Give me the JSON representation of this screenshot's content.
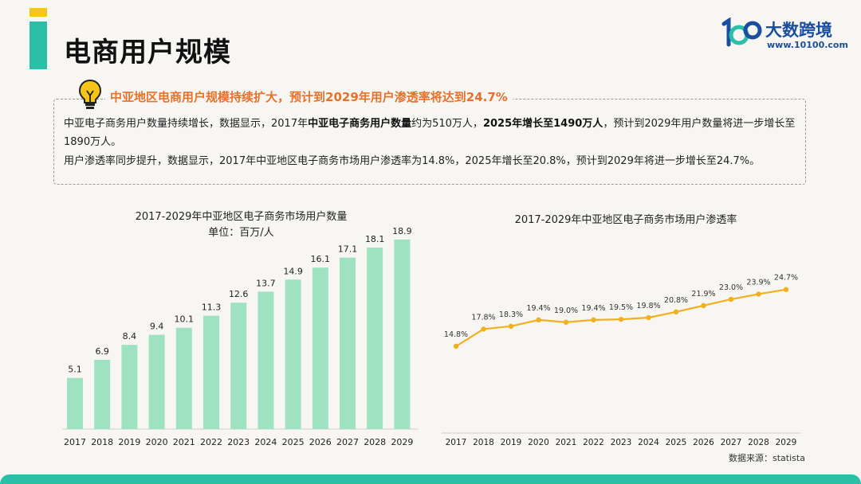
{
  "page": {
    "title": "电商用户规模",
    "source": "数据来源：statista"
  },
  "logo": {
    "name": "大数跨境",
    "url": "www.10100.com",
    "mark_text": "100"
  },
  "summary": {
    "headline": "中亚地区电商用户规模持续扩大，预计到2029年用户渗透率将达到24.7%",
    "para1": [
      {
        "text": "中亚电子商务用户数量持续增长，数据显示，2017年",
        "bold": false
      },
      {
        "text": "中亚电子商务用户数量",
        "bold": true
      },
      {
        "text": "约为510万人，",
        "bold": false
      },
      {
        "text": "2025年增长至1490万人",
        "bold": true
      },
      {
        "text": "，预计到2029年用户数量将进一步增长至1890万人。",
        "bold": false
      }
    ],
    "para2": "用户渗透率同步提升，数据显示，2017年中亚地区电子商务市场用户渗透率为14.8%，2025年增长至20.8%，预计到2029年将进一步增长至24.7%。"
  },
  "colors": {
    "accent_teal": "#2bbfa8",
    "accent_yellow": "#f5c518",
    "headline_orange": "#e8712a",
    "bar_green": "#9ee2c2",
    "line_orange": "#f2b01e",
    "logo_blue": "#1a4fa0"
  },
  "chart_data": [
    {
      "type": "bar",
      "title": "2017-2029年中亚地区电子商务市场用户数量",
      "subtitle": "单位：百万/人",
      "categories": [
        "2017",
        "2018",
        "2019",
        "2020",
        "2021",
        "2022",
        "2023",
        "2024",
        "2025",
        "2026",
        "2027",
        "2028",
        "2029"
      ],
      "values": [
        5.1,
        6.9,
        8.4,
        9.4,
        10.1,
        11.3,
        12.6,
        13.7,
        14.9,
        16.1,
        17.1,
        18.1,
        18.9
      ],
      "data_labels": [
        "5.1",
        "6.9",
        "8.4",
        "9.4",
        "10.1",
        "11.3",
        "12.6",
        "13.7",
        "14.9",
        "16.1",
        "17.1",
        "18.1",
        "18.9"
      ],
      "ylim": [
        0,
        20
      ],
      "grid": false,
      "legend": "none"
    },
    {
      "type": "line",
      "title": "2017-2029年中亚地区电子商务市场用户渗透率",
      "categories": [
        "2017",
        "2018",
        "2019",
        "2020",
        "2021",
        "2022",
        "2023",
        "2024",
        "2025",
        "2026",
        "2027",
        "2028",
        "2029"
      ],
      "values": [
        14.8,
        17.8,
        18.3,
        19.4,
        19.0,
        19.4,
        19.5,
        19.8,
        20.8,
        21.9,
        23.0,
        23.9,
        24.7
      ],
      "data_labels": [
        "14.8%",
        "17.8%",
        "18.3%",
        "19.4%",
        "19.0%",
        "19.4%",
        "19.5%",
        "19.8%",
        "20.8%",
        "21.9%",
        "23.0%",
        "23.9%",
        "24.7%"
      ],
      "ylim": [
        0,
        30
      ],
      "grid": false,
      "legend": "none"
    }
  ]
}
